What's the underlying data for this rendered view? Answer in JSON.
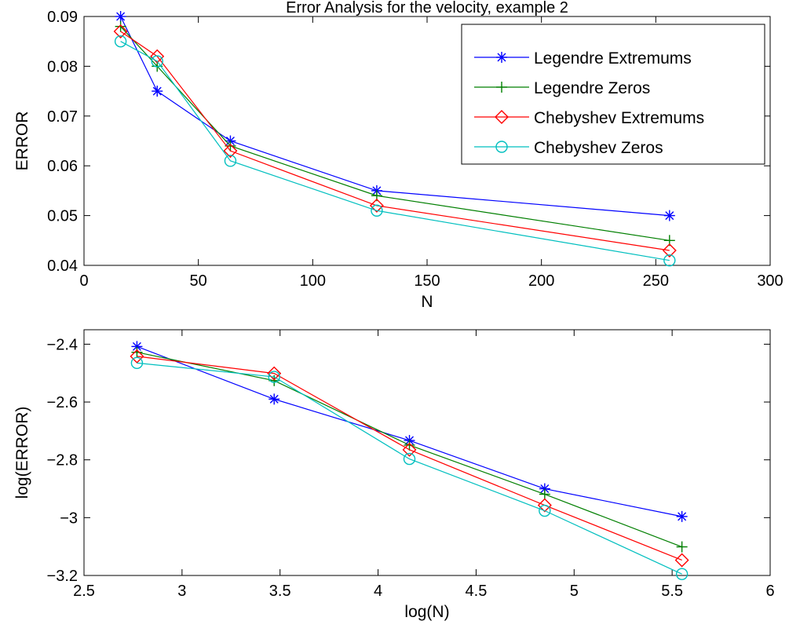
{
  "chart_data": [
    {
      "type": "line",
      "title": "Error Analysis for the velocity, example 2",
      "xlabel": "N",
      "ylabel": "ERROR",
      "xlim": [
        0,
        300
      ],
      "ylim": [
        0.04,
        0.09
      ],
      "xticks": [
        0,
        50,
        100,
        150,
        200,
        250,
        300
      ],
      "yticks": [
        0.04,
        0.05,
        0.06,
        0.07,
        0.08,
        0.09
      ],
      "xtick_labels": [
        "0",
        "50",
        "100",
        "150",
        "200",
        "250",
        "300"
      ],
      "ytick_labels": [
        "0.04",
        "0.05",
        "0.06",
        "0.07",
        "0.08",
        "0.09"
      ],
      "grid": false,
      "legend": "top-right",
      "x": [
        16,
        32,
        64,
        128,
        256
      ],
      "series": [
        {
          "name": "Legendre Extremums",
          "color": "#0000ff",
          "marker": "asterisk",
          "values": [
            0.09,
            0.075,
            0.065,
            0.055,
            0.05
          ]
        },
        {
          "name": "Legendre Zeros",
          "color": "#007f00",
          "marker": "plus",
          "values": [
            0.088,
            0.08,
            0.064,
            0.054,
            0.045
          ]
        },
        {
          "name": "Chebyshev Extremums",
          "color": "#ff0000",
          "marker": "diamond",
          "values": [
            0.087,
            0.082,
            0.063,
            0.052,
            0.043
          ]
        },
        {
          "name": "Chebyshev Zeros",
          "color": "#00bfbf",
          "marker": "circle",
          "values": [
            0.085,
            0.081,
            0.061,
            0.051,
            0.041
          ]
        }
      ]
    },
    {
      "type": "line",
      "title": "",
      "xlabel": "log(N)",
      "ylabel": "log(ERROR)",
      "xlim": [
        2.5,
        6
      ],
      "ylim": [
        -3.2,
        -2.35
      ],
      "xticks": [
        2.5,
        3,
        3.5,
        4,
        4.5,
        5,
        5.5,
        6
      ],
      "yticks": [
        -3.2,
        -3,
        -2.8,
        -2.6,
        -2.4
      ],
      "xtick_labels": [
        "2.5",
        "3",
        "3.5",
        "4",
        "4.5",
        "5",
        "5.5",
        "6"
      ],
      "ytick_labels": [
        "−3.2",
        "−3",
        "−2.8",
        "−2.6",
        "−2.4"
      ],
      "grid": false,
      "x": [
        2.77,
        3.47,
        4.16,
        4.85,
        5.55
      ],
      "series": [
        {
          "color": "#0000ff",
          "marker": "asterisk",
          "values": [
            -2.408,
            -2.59,
            -2.733,
            -2.9,
            -2.996
          ]
        },
        {
          "color": "#007f00",
          "marker": "plus",
          "values": [
            -2.428,
            -2.526,
            -2.749,
            -2.919,
            -3.101
          ]
        },
        {
          "color": "#ff0000",
          "marker": "diamond",
          "values": [
            -2.442,
            -2.501,
            -2.765,
            -2.957,
            -3.147
          ]
        },
        {
          "color": "#00bfbf",
          "marker": "circle",
          "values": [
            -2.465,
            -2.513,
            -2.797,
            -2.976,
            -3.195
          ]
        }
      ]
    }
  ]
}
